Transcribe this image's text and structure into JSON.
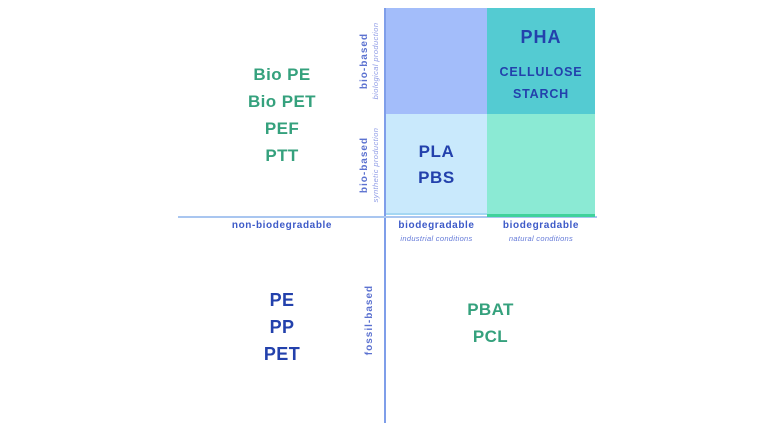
{
  "axes": {
    "x": {
      "left": {
        "label": "non-biodegradable"
      },
      "middle": {
        "label": "biodegradable",
        "sublabel": "industrial conditions"
      },
      "right": {
        "label": "biodegradable",
        "sublabel": "natural conditions"
      }
    },
    "y": {
      "top": {
        "label": "bio-based",
        "sublabel": "biological production"
      },
      "middle": {
        "label": "bio-based",
        "sublabel": "synthetic production"
      },
      "bottom": {
        "label": "fossil-based"
      }
    }
  },
  "groups": {
    "bio_based_non_biodegradable": {
      "items": [
        "Bio PE",
        "Bio PET",
        "PEF",
        "PTT"
      ]
    },
    "biological_natural": {
      "primary": "PHA",
      "items": [
        "CELLULOSE",
        "STARCH"
      ]
    },
    "synthetic_industrial": {
      "items": [
        "PLA",
        "PBS"
      ]
    },
    "fossil_non_biodegradable": {
      "items": [
        "PE",
        "PP",
        "PET"
      ]
    },
    "fossil_biodegradable": {
      "items": [
        "PBAT",
        "PCL"
      ]
    }
  },
  "colors": {
    "cell_biological_industrial": "#a3bdfa",
    "cell_biological_natural": "#54cbd2",
    "cell_synthetic_industrial": "#c9e9fc",
    "cell_synthetic_natural": "#8bead4",
    "text_green": "#35a17d",
    "text_navy": "#2341ac",
    "axis_caption_blue": "#3d5ac8",
    "y_axis_line": "#7f9ee9",
    "x_axis_line_blue": "#a9c6f0",
    "x_axis_line_green": "#3fd29b"
  }
}
